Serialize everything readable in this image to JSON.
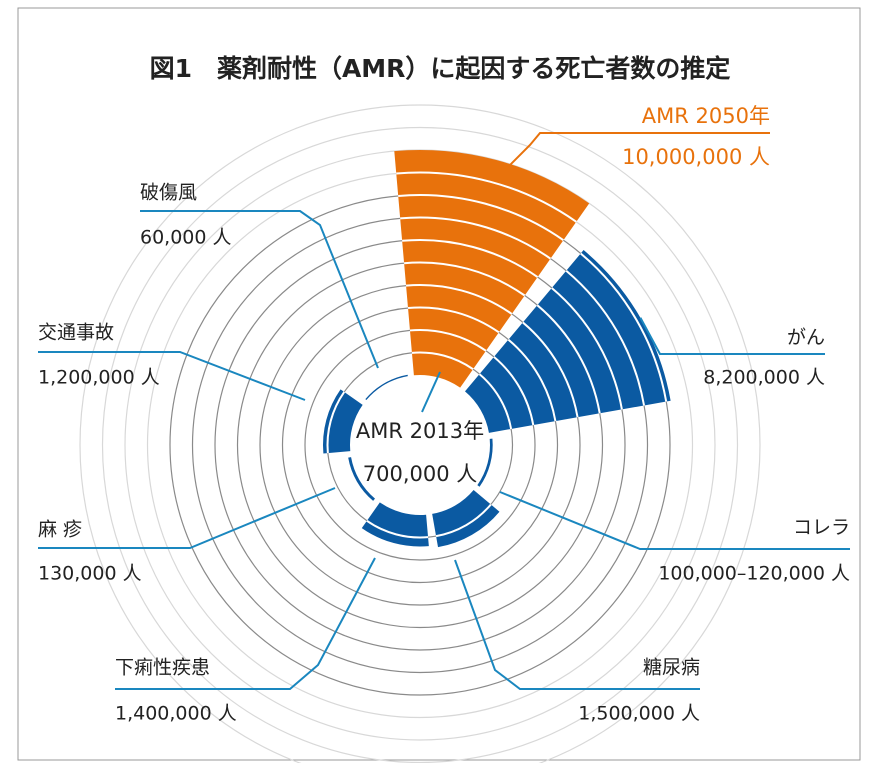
{
  "chart_data": {
    "type": "radial_bar",
    "title": "図1　薬剤耐性（AMR）に起因する死亡者数の推定",
    "center_title": "AMR 2013年",
    "center_label": "700,000 人",
    "categories": [
      "AMR 2050年",
      "がん",
      "コレラ",
      "糖尿病",
      "下痢性疾患",
      "麻 疹",
      "交通事故",
      "破傷風"
    ],
    "values": [
      10000000,
      8200000,
      120000,
      1500000,
      1400000,
      130000,
      1200000,
      60000
    ],
    "value_labels": [
      "10,000,000 人",
      "8,200,000 人",
      "100,000–120,000 人",
      "1,500,000 人",
      "1,400,000 人",
      "130,000 人",
      "1,200,000 人",
      "60,000 人"
    ],
    "colors": [
      "#e8720c",
      "#0b5aa2",
      "#0b5aa2",
      "#0b5aa2",
      "#0b5aa2",
      "#0b5aa2",
      "#0b5aa2",
      "#0b5aa2"
    ],
    "rlim": [
      0,
      12000000
    ],
    "rticks": [
      1000000,
      2000000,
      3000000,
      4000000,
      5000000,
      6000000,
      7000000,
      8000000,
      9000000,
      10000000,
      11000000,
      12000000
    ]
  }
}
